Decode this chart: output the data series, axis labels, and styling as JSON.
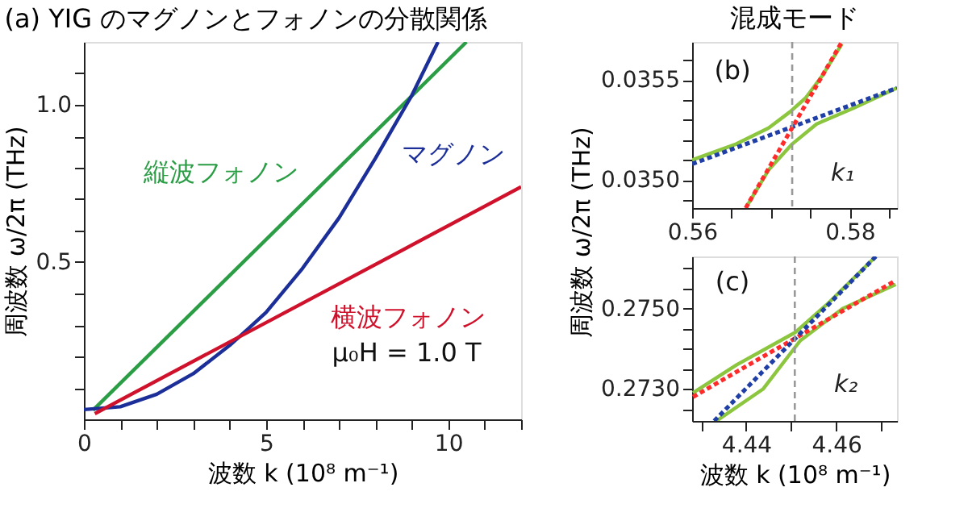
{
  "chart_data": [
    {
      "type": "line",
      "title": "(a) YIG のマグノンとフォノンの分散関係",
      "xlabel": "波数 k (10⁸ m⁻¹)",
      "ylabel": "周波数 ω/2π (THz)",
      "xlim": [
        0,
        12
      ],
      "ylim": [
        0,
        1.2
      ],
      "xticks": [
        0,
        {
          "value": 1,
          "label": null
        },
        {
          "value": 2,
          "label": null
        },
        {
          "value": 3,
          "label": null
        },
        {
          "value": 4,
          "label": null
        },
        5,
        {
          "value": 6,
          "label": null
        },
        {
          "value": 7,
          "label": null
        },
        {
          "value": 8,
          "label": null
        },
        {
          "value": 9,
          "label": null
        },
        10,
        {
          "value": 11,
          "label": null
        },
        {
          "value": 12,
          "label": null
        }
      ],
      "yticks": [
        {
          "value": 0.1,
          "label": null
        },
        {
          "value": 0.2,
          "label": null
        },
        {
          "value": 0.3,
          "label": null
        },
        {
          "value": 0.4,
          "label": null
        },
        0.5,
        {
          "value": 0.6,
          "label": null
        },
        {
          "value": 0.7,
          "label": null
        },
        {
          "value": 0.8,
          "label": null
        },
        {
          "value": 0.9,
          "label": null
        },
        {
          "value": 1.0,
          "label": "1.0"
        },
        {
          "value": 1.1,
          "label": null
        }
      ],
      "grid": false,
      "line_style": "solid",
      "annotations": [
        "μ₀H = 1.0 T"
      ],
      "series": [
        {
          "name": "縦波フォノン",
          "color": "#2a9d45",
          "x": [
            0.25,
            10.5
          ],
          "values": [
            0.029,
            1.2
          ]
        },
        {
          "name": "マグノン",
          "color": "#1c2f99",
          "x": [
            0,
            1,
            2,
            3,
            4,
            4.5,
            5,
            6,
            7,
            8,
            9,
            9.72
          ],
          "values": [
            0.031,
            0.04,
            0.08,
            0.145,
            0.235,
            0.287,
            0.34,
            0.48,
            0.64,
            0.83,
            1.03,
            1.2
          ]
        },
        {
          "name": "横波フォノン",
          "color": "#d0112b",
          "x": [
            0.3,
            12
          ],
          "values": [
            0.018,
            0.739
          ]
        }
      ]
    },
    {
      "type": "line",
      "title": "混成モード",
      "ylabel": "周波数 ω/2π (THz)",
      "xlim": [
        0.56,
        0.586
      ],
      "ylim": [
        0.03486,
        0.03569
      ],
      "xticks": [
        0.56,
        {
          "value": 0.565,
          "label": null
        },
        {
          "value": 0.57,
          "label": null
        },
        {
          "value": 0.575,
          "label": null
        },
        0.58,
        {
          "value": 0.585,
          "label": null
        }
      ],
      "yticks": [
        {
          "value": 0.0349,
          "label": null
        },
        {
          "value": 0.035,
          "label": "0.0350"
        },
        {
          "value": 0.0351,
          "label": null
        },
        {
          "value": 0.0352,
          "label": null
        },
        {
          "value": 0.0353,
          "label": null
        },
        {
          "value": 0.0354,
          "label": null
        },
        0.0355,
        {
          "value": 0.0356,
          "label": null
        }
      ],
      "grid": false,
      "annotations": [
        "(b)"
      ],
      "ref_lines": [
        {
          "axis": "x",
          "value": 0.5727,
          "label": "k₁",
          "color": "#999999",
          "line_style": "dashed"
        }
      ],
      "series": [
        {
          "color": "#8cc63f",
          "line_style": "solid",
          "x": [
            0.56,
            0.5656,
            0.5697,
            0.5724,
            0.5744,
            0.5765,
            0.579
          ],
          "values": [
            0.0351,
            0.03518,
            0.03526,
            0.03534,
            0.03541,
            0.03552,
            0.03568
          ]
        },
        {
          "color": "#8cc63f",
          "line_style": "solid",
          "x": [
            0.5668,
            0.5697,
            0.5727,
            0.5758,
            0.5805,
            0.586
          ],
          "values": [
            0.03486,
            0.03505,
            0.03518,
            0.03528,
            0.03536,
            0.03546
          ]
        },
        {
          "color": "#1f3fa6",
          "line_style": "dotted",
          "x": [
            0.56,
            0.586
          ],
          "values": [
            0.03508,
            0.03546
          ]
        },
        {
          "color": "#ff2a2a",
          "line_style": "dotted",
          "x": [
            0.5668,
            0.579
          ],
          "values": [
            0.03486,
            0.03569
          ]
        }
      ]
    },
    {
      "type": "line",
      "xlabel": "波数 k (10⁸ m⁻¹)",
      "xlim": [
        4.428,
        4.4735
      ],
      "ylim": [
        0.2722,
        0.2763
      ],
      "xticks": [
        {
          "value": 4.43,
          "label": null
        },
        4.44,
        {
          "value": 4.45,
          "label": null
        },
        4.46,
        {
          "value": 4.47,
          "label": null
        }
      ],
      "yticks": [
        {
          "value": 0.2725,
          "label": null
        },
        {
          "value": 0.273,
          "label": "0.2730"
        },
        {
          "value": 0.2735,
          "label": null
        },
        {
          "value": 0.274,
          "label": null
        },
        {
          "value": 0.2745,
          "label": null
        },
        {
          "value": 0.275,
          "label": "0.2750"
        },
        {
          "value": 0.2755,
          "label": null
        },
        {
          "value": 0.276,
          "label": null
        }
      ],
      "grid": false,
      "annotations": [
        "(c)"
      ],
      "ref_lines": [
        {
          "axis": "x",
          "value": 4.4508,
          "label": "k₂",
          "color": "#999999",
          "line_style": "dashed"
        }
      ],
      "series": [
        {
          "color": "#8cc63f",
          "line_style": "solid",
          "x": [
            4.4282,
            4.4379,
            4.4508,
            4.4579,
            4.4688
          ],
          "values": [
            0.2729,
            0.2736,
            0.2744,
            0.2751,
            0.2763
          ]
        },
        {
          "color": "#8cc63f",
          "line_style": "solid",
          "x": [
            4.4334,
            4.4438,
            4.452,
            4.4614,
            4.4732
          ],
          "values": [
            0.2722,
            0.273,
            0.2742,
            0.275,
            0.2756
          ]
        },
        {
          "color": "#ff2a2a",
          "line_style": "dotted",
          "x": [
            4.4282,
            4.4732
          ],
          "values": [
            0.2728,
            0.2757
          ]
        },
        {
          "color": "#1f3fa6",
          "line_style": "dotted",
          "x": [
            4.4329,
            4.4688
          ],
          "values": [
            0.2722,
            0.2763
          ]
        }
      ]
    }
  ]
}
